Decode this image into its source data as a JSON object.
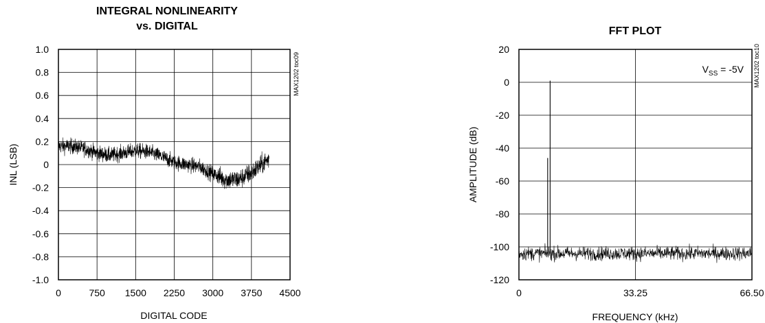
{
  "chart_data": [
    {
      "type": "line",
      "title_line1": "INTEGRAL NONLINEARITY",
      "title_line2": "vs. DIGITAL",
      "xlabel": "DIGITAL CODE",
      "ylabel": "INL (LSB)",
      "xlim": [
        0,
        4500
      ],
      "ylim": [
        -1.0,
        1.0
      ],
      "x_ticks": [
        "0",
        "750",
        "1500",
        "2250",
        "3000",
        "3750",
        "4500"
      ],
      "y_ticks": [
        "1.0",
        "0.8",
        "0.6",
        "0.4",
        "0.2",
        "0",
        "-0.2",
        "-0.4",
        "-0.6",
        "-0.8",
        "-1.0"
      ],
      "grid": true,
      "side_note": "MAX1202 toc09",
      "series": [
        {
          "x": [
            0,
            250,
            500,
            750,
            1000,
            1250,
            1500,
            1750,
            2000,
            2250,
            2500,
            2750,
            3000,
            3250,
            3500,
            3750,
            4000,
            4095
          ],
          "y": [
            0.16,
            0.16,
            0.14,
            0.1,
            0.08,
            0.1,
            0.12,
            0.11,
            0.07,
            0.02,
            0.0,
            -0.02,
            -0.08,
            -0.13,
            -0.13,
            -0.07,
            0.02,
            0.05
          ]
        }
      ]
    },
    {
      "type": "line",
      "title": "FFT PLOT",
      "xlabel": "FREQUENCY (kHz)",
      "ylabel": "AMPLITUDE (dB)",
      "xlim": [
        0,
        66.5
      ],
      "ylim": [
        -120,
        20
      ],
      "x_ticks": [
        "0",
        "33.25",
        "66.50"
      ],
      "y_ticks": [
        "20",
        "0",
        "-20",
        "-40",
        "-60",
        "-80",
        "-100",
        "-120"
      ],
      "grid": true,
      "annotation_main": "V",
      "annotation_sub": "SS",
      "annotation_tail": " = -5V",
      "side_note": "MAX1202 toc10",
      "series": [
        {
          "noise_floor_db": -104,
          "peaks": [
            {
              "x": 8.9,
              "y": 1
            },
            {
              "x": 8.2,
              "y": -46
            }
          ]
        }
      ]
    }
  ]
}
